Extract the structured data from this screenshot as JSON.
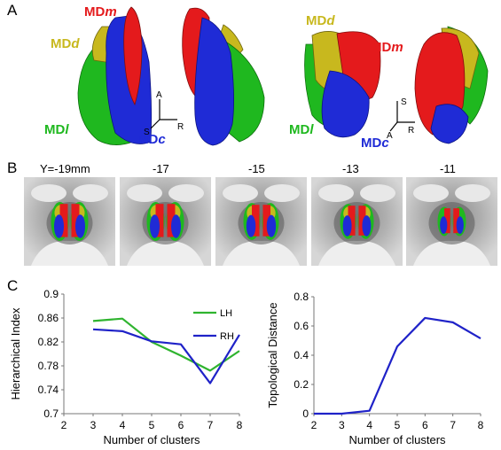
{
  "panels": {
    "a": "A",
    "b": "B",
    "c": "C"
  },
  "panel_a": {
    "labels": {
      "md_m_left": {
        "base": "MD",
        "suffix": "m"
      },
      "md_d_left": {
        "base": "MD",
        "suffix": "d"
      },
      "md_l_left": {
        "base": "MD",
        "suffix": "l"
      },
      "md_c_left": {
        "base": "MD",
        "suffix": "c"
      },
      "md_d_right": {
        "base": "MD",
        "suffix": "d"
      },
      "md_m_right": {
        "base": "MD",
        "suffix": "m"
      },
      "md_l_right": {
        "base": "MD",
        "suffix": "l"
      },
      "md_c_right": {
        "base": "MD",
        "suffix": "c"
      }
    },
    "axes_left": {
      "a": "A",
      "s": "S",
      "r": "R"
    },
    "axes_right": {
      "s": "S",
      "a": "A",
      "r": "R"
    },
    "colors": {
      "md_m": "#e41a1c",
      "md_d": "#c8b81e",
      "md_l": "#1fb81f",
      "md_c": "#1f2bd6"
    }
  },
  "panel_b": {
    "slices": [
      "Y=-19mm",
      "-17",
      "-15",
      "-13",
      "-11"
    ]
  },
  "chart_data": [
    {
      "type": "line",
      "xlabel": "Number of clusters",
      "ylabel": "Hierarchical Index",
      "x": [
        3,
        4,
        5,
        6,
        7,
        8
      ],
      "xticks": [
        "2",
        "3",
        "4",
        "5",
        "6",
        "7",
        "8"
      ],
      "yticks": [
        "0.7",
        "0.74",
        "0.78",
        "0.82",
        "0.86",
        "0.9"
      ],
      "xlim": [
        2,
        8
      ],
      "ylim": [
        0.7,
        0.9
      ],
      "series": [
        {
          "name": "LH",
          "color": "#2fb42f",
          "values": [
            0.855,
            0.859,
            0.82,
            0.797,
            0.772,
            0.805
          ]
        },
        {
          "name": "RH",
          "color": "#1f22c8",
          "values": [
            0.841,
            0.838,
            0.821,
            0.816,
            0.751,
            0.832
          ]
        }
      ],
      "legend": "top-right"
    },
    {
      "type": "line",
      "xlabel": "Number of clusters",
      "ylabel": "Topological Distance",
      "x": [
        2,
        3,
        4,
        5,
        6,
        7,
        8
      ],
      "xticks": [
        "2",
        "3",
        "4",
        "5",
        "6",
        "7",
        "8"
      ],
      "yticks": [
        "0",
        "0.2",
        "0.4",
        "0.6",
        "0.8"
      ],
      "xlim": [
        2,
        8
      ],
      "ylim": [
        0,
        0.8
      ],
      "series": [
        {
          "color": "#1f22c8",
          "values": [
            0.0,
            0.0,
            0.02,
            0.46,
            0.655,
            0.625,
            0.515
          ]
        }
      ]
    }
  ]
}
